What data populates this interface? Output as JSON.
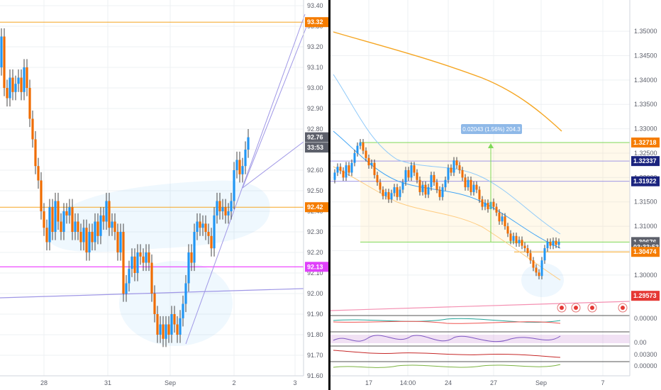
{
  "colors": {
    "bull": "#2196f3",
    "bear": "#ef6c00",
    "grid": "#eef0f3",
    "axis_text": "#5d606b",
    "orange_line": "#f5a623",
    "magenta_line": "#e91eff",
    "blue_line": "#9f97e6",
    "green_line": "#7ed957",
    "badge_orange": "#f57c00",
    "badge_magenta": "#e040fb",
    "badge_gray": "#5d606b",
    "badge_navy": "#1a237e",
    "badge_red": "#e53935"
  },
  "chart_data": [
    {
      "type": "candlestick",
      "name": "left",
      "x_labels": [
        "28",
        "31",
        "Sep",
        "2",
        "3"
      ],
      "y_ticks": [
        "93.40",
        "93.30",
        "93.20",
        "93.10",
        "93.00",
        "92.90",
        "92.80",
        "92.70",
        "92.60",
        "92.50",
        "92.40",
        "92.30",
        "92.20",
        "92.10",
        "92.00",
        "91.90",
        "91.80",
        "91.70",
        "91.60"
      ],
      "ylim": [
        91.6,
        93.4
      ],
      "price_badges": [
        {
          "label": "93.32",
          "value": 93.32,
          "color": "#f57c00"
        },
        {
          "label": "92.76",
          "value": 92.76,
          "color": "#5d606b"
        },
        {
          "label": "33:53",
          "value": 92.71,
          "color": "#5d606b"
        },
        {
          "label": "92.42",
          "value": 92.42,
          "color": "#f57c00"
        },
        {
          "label": "92.13",
          "value": 92.13,
          "color": "#e040fb"
        }
      ],
      "horizontal_lines": [
        {
          "value": 93.32,
          "color": "orange"
        },
        {
          "value": 92.42,
          "color": "orange"
        },
        {
          "value": 92.13,
          "color": "magenta"
        }
      ]
    },
    {
      "type": "candlestick",
      "name": "right",
      "x_labels": [
        "17",
        "14:00",
        "24",
        "27",
        "Sep",
        "7"
      ],
      "y_ticks": [
        "1.35000",
        "1.34500",
        "1.34000",
        "1.33500",
        "1.33000",
        "1.32500",
        "1.32000",
        "1.31500",
        "1.31000",
        "1.30500",
        "1.30000"
      ],
      "ylim": [
        1.2975,
        1.3535
      ],
      "price_badges": [
        {
          "label": "1.32718",
          "value": 1.32718,
          "color": "#f57c00"
        },
        {
          "label": "1.32337",
          "value": 1.32337,
          "color": "#1a237e"
        },
        {
          "label": "1.31922",
          "value": 1.31922,
          "color": "#1a237e"
        },
        {
          "label": "1.30676",
          "value": 1.30676,
          "color": "#5d606b"
        },
        {
          "label": "03:33:53",
          "value": 1.30575,
          "color": "#5d606b"
        },
        {
          "label": "1.30474",
          "value": 1.30474,
          "color": "#f57c00"
        },
        {
          "label": "1.29573",
          "value": 1.29573,
          "color": "#e53935"
        }
      ],
      "measurement_label": "0.02043 (1.56%) 204.3",
      "indicator_ticks": [
        "0.00000",
        "0.00",
        "0.00300",
        "0.00000"
      ]
    }
  ]
}
